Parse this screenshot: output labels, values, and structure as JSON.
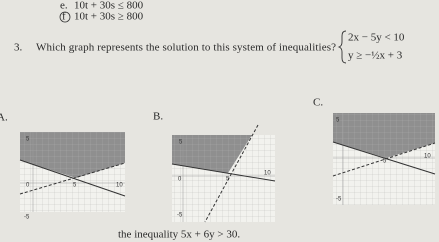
{
  "items": [
    {
      "label": "e.",
      "text": "10t + 30s ≤ 800"
    },
    {
      "label": "f",
      "text": "10t + 30s ≥ 800"
    }
  ],
  "question": {
    "number": "3.",
    "text": "Which graph represents the solution to this system of inequalities?",
    "system": [
      "2x − 5y < 10",
      "y ≥ −½x + 3"
    ]
  },
  "options": [
    {
      "label": "A.",
      "ticks": [
        "5",
        "0",
        "5",
        "10",
        "-5"
      ]
    },
    {
      "label": "B.",
      "ticks": [
        "5",
        "0",
        "5",
        "10",
        "-5"
      ]
    },
    {
      "label": "C.",
      "ticks": [
        "5",
        "5",
        "10",
        "-5"
      ]
    }
  ],
  "footer": "the inequality 5x + 6y > 30."
}
